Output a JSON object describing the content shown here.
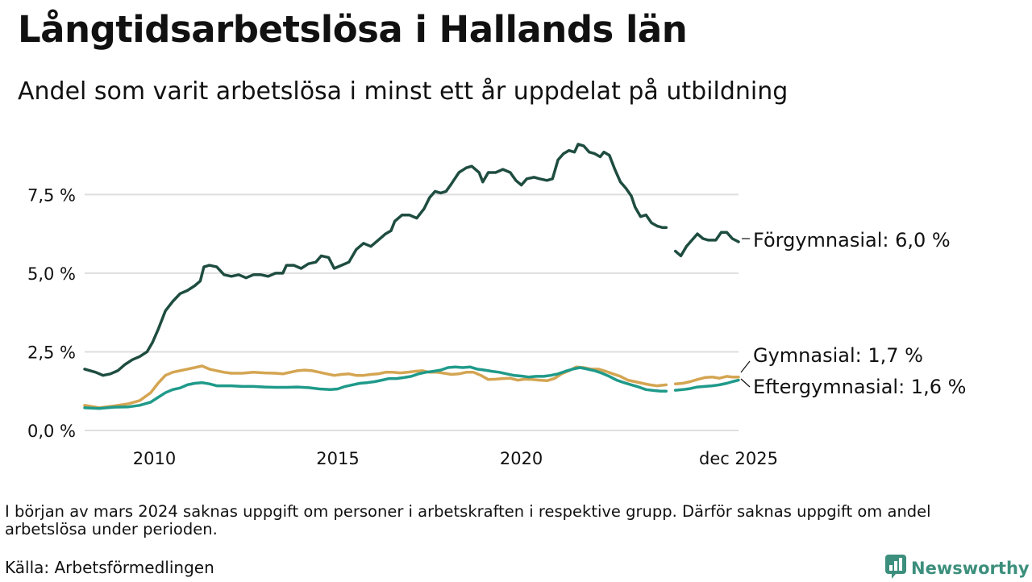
{
  "header": {
    "title": "Långtidsarbetslösa i Hallands län",
    "subtitle": "Andel som varit arbetslösa i minst ett år uppdelat på utbildning"
  },
  "footer": {
    "note": "I början av mars 2024 saknas uppgift om personer i arbetskraften i respektive grupp. Därför saknas uppgift om andel arbetslösa under perioden.",
    "source": "Källa: Arbetsförmedlingen",
    "brand": "Newsworthy",
    "brand_icon": "newsworthy-logo-icon",
    "brand_color": "#3c8f7c"
  },
  "chart_data": {
    "type": "line",
    "title": "Långtidsarbetslösa i Hallands län",
    "subtitle": "Andel som varit arbetslösa i minst ett år uppdelat på utbildning",
    "xlabel": "",
    "ylabel": "",
    "x_range": [
      2008.1,
      2025.92
    ],
    "ylim": [
      0,
      9.2
    ],
    "grid": true,
    "yticks": [
      {
        "value": 0,
        "label": "0,0 %"
      },
      {
        "value": 2.5,
        "label": "2,5 %"
      },
      {
        "value": 5,
        "label": "5,0 %"
      },
      {
        "value": 7.5,
        "label": "7,5 %"
      }
    ],
    "xticks": [
      {
        "value": 2010,
        "label": "2010"
      },
      {
        "value": 2015,
        "label": "2015"
      },
      {
        "value": 2020,
        "label": "2020"
      },
      {
        "value": 2025.92,
        "label": "dec 2025"
      }
    ],
    "gap": [
      2023.95,
      2024.2
    ],
    "series": [
      {
        "name": "Förgymnasial",
        "label": "Förgymnasial: 6,0 %",
        "color": "#1e4d40",
        "points": [
          [
            2008.1,
            1.95
          ],
          [
            2008.4,
            1.85
          ],
          [
            2008.6,
            1.75
          ],
          [
            2008.8,
            1.8
          ],
          [
            2009.0,
            1.9
          ],
          [
            2009.2,
            2.1
          ],
          [
            2009.4,
            2.25
          ],
          [
            2009.6,
            2.35
          ],
          [
            2009.8,
            2.5
          ],
          [
            2009.95,
            2.8
          ],
          [
            2010.1,
            3.2
          ],
          [
            2010.3,
            3.8
          ],
          [
            2010.5,
            4.1
          ],
          [
            2010.7,
            4.35
          ],
          [
            2010.9,
            4.45
          ],
          [
            2011.1,
            4.6
          ],
          [
            2011.25,
            4.75
          ],
          [
            2011.35,
            5.2
          ],
          [
            2011.5,
            5.25
          ],
          [
            2011.7,
            5.2
          ],
          [
            2011.9,
            4.95
          ],
          [
            2012.1,
            4.9
          ],
          [
            2012.3,
            4.95
          ],
          [
            2012.5,
            4.85
          ],
          [
            2012.7,
            4.95
          ],
          [
            2012.9,
            4.95
          ],
          [
            2013.1,
            4.9
          ],
          [
            2013.3,
            5.0
          ],
          [
            2013.5,
            5.0
          ],
          [
            2013.6,
            5.25
          ],
          [
            2013.8,
            5.25
          ],
          [
            2014.0,
            5.15
          ],
          [
            2014.2,
            5.3
          ],
          [
            2014.4,
            5.35
          ],
          [
            2014.55,
            5.55
          ],
          [
            2014.75,
            5.5
          ],
          [
            2014.9,
            5.15
          ],
          [
            2015.1,
            5.25
          ],
          [
            2015.3,
            5.35
          ],
          [
            2015.5,
            5.75
          ],
          [
            2015.7,
            5.95
          ],
          [
            2015.9,
            5.85
          ],
          [
            2016.1,
            6.05
          ],
          [
            2016.3,
            6.25
          ],
          [
            2016.45,
            6.35
          ],
          [
            2016.55,
            6.65
          ],
          [
            2016.75,
            6.85
          ],
          [
            2016.95,
            6.85
          ],
          [
            2017.15,
            6.75
          ],
          [
            2017.35,
            7.05
          ],
          [
            2017.5,
            7.4
          ],
          [
            2017.65,
            7.6
          ],
          [
            2017.8,
            7.55
          ],
          [
            2017.95,
            7.6
          ],
          [
            2018.1,
            7.85
          ],
          [
            2018.3,
            8.2
          ],
          [
            2018.5,
            8.35
          ],
          [
            2018.65,
            8.4
          ],
          [
            2018.85,
            8.2
          ],
          [
            2018.95,
            7.9
          ],
          [
            2019.1,
            8.2
          ],
          [
            2019.3,
            8.2
          ],
          [
            2019.5,
            8.3
          ],
          [
            2019.7,
            8.2
          ],
          [
            2019.85,
            7.95
          ],
          [
            2020.0,
            7.8
          ],
          [
            2020.15,
            8.0
          ],
          [
            2020.35,
            8.05
          ],
          [
            2020.5,
            8.0
          ],
          [
            2020.7,
            7.95
          ],
          [
            2020.85,
            8.0
          ],
          [
            2021.0,
            8.6
          ],
          [
            2021.15,
            8.8
          ],
          [
            2021.3,
            8.9
          ],
          [
            2021.45,
            8.85
          ],
          [
            2021.55,
            9.1
          ],
          [
            2021.7,
            9.05
          ],
          [
            2021.85,
            8.85
          ],
          [
            2022.0,
            8.8
          ],
          [
            2022.15,
            8.7
          ],
          [
            2022.25,
            8.85
          ],
          [
            2022.4,
            8.75
          ],
          [
            2022.55,
            8.3
          ],
          [
            2022.7,
            7.9
          ],
          [
            2022.85,
            7.7
          ],
          [
            2023.0,
            7.45
          ],
          [
            2023.1,
            7.1
          ],
          [
            2023.25,
            6.8
          ],
          [
            2023.4,
            6.85
          ],
          [
            2023.55,
            6.6
          ],
          [
            2023.7,
            6.5
          ],
          [
            2023.85,
            6.45
          ],
          [
            2023.95,
            6.45
          ],
          null,
          [
            2024.2,
            5.7
          ],
          [
            2024.35,
            5.55
          ],
          [
            2024.5,
            5.85
          ],
          [
            2024.65,
            6.05
          ],
          [
            2024.8,
            6.25
          ],
          [
            2024.95,
            6.1
          ],
          [
            2025.1,
            6.05
          ],
          [
            2025.3,
            6.05
          ],
          [
            2025.45,
            6.3
          ],
          [
            2025.6,
            6.3
          ],
          [
            2025.75,
            6.1
          ],
          [
            2025.92,
            6.0
          ]
        ]
      },
      {
        "name": "Gymnasial",
        "label": "Gymnasial: 1,7 %",
        "color": "#d4a552",
        "points": [
          [
            2008.1,
            0.8
          ],
          [
            2008.5,
            0.72
          ],
          [
            2008.9,
            0.78
          ],
          [
            2009.3,
            0.85
          ],
          [
            2009.6,
            0.95
          ],
          [
            2009.9,
            1.2
          ],
          [
            2010.1,
            1.5
          ],
          [
            2010.3,
            1.75
          ],
          [
            2010.5,
            1.85
          ],
          [
            2010.7,
            1.9
          ],
          [
            2010.9,
            1.95
          ],
          [
            2011.1,
            2.0
          ],
          [
            2011.3,
            2.05
          ],
          [
            2011.5,
            1.95
          ],
          [
            2011.7,
            1.9
          ],
          [
            2011.9,
            1.85
          ],
          [
            2012.1,
            1.82
          ],
          [
            2012.4,
            1.82
          ],
          [
            2012.7,
            1.85
          ],
          [
            2013.0,
            1.83
          ],
          [
            2013.3,
            1.82
          ],
          [
            2013.5,
            1.8
          ],
          [
            2013.7,
            1.85
          ],
          [
            2013.9,
            1.9
          ],
          [
            2014.1,
            1.92
          ],
          [
            2014.3,
            1.9
          ],
          [
            2014.5,
            1.85
          ],
          [
            2014.7,
            1.8
          ],
          [
            2014.9,
            1.75
          ],
          [
            2015.1,
            1.78
          ],
          [
            2015.3,
            1.8
          ],
          [
            2015.5,
            1.75
          ],
          [
            2015.7,
            1.75
          ],
          [
            2015.9,
            1.78
          ],
          [
            2016.1,
            1.8
          ],
          [
            2016.3,
            1.85
          ],
          [
            2016.5,
            1.85
          ],
          [
            2016.7,
            1.83
          ],
          [
            2016.9,
            1.85
          ],
          [
            2017.1,
            1.88
          ],
          [
            2017.3,
            1.9
          ],
          [
            2017.5,
            1.85
          ],
          [
            2017.7,
            1.85
          ],
          [
            2017.9,
            1.82
          ],
          [
            2018.1,
            1.78
          ],
          [
            2018.3,
            1.8
          ],
          [
            2018.5,
            1.85
          ],
          [
            2018.7,
            1.85
          ],
          [
            2018.9,
            1.75
          ],
          [
            2019.1,
            1.62
          ],
          [
            2019.3,
            1.63
          ],
          [
            2019.5,
            1.65
          ],
          [
            2019.7,
            1.66
          ],
          [
            2019.9,
            1.6
          ],
          [
            2020.1,
            1.63
          ],
          [
            2020.3,
            1.62
          ],
          [
            2020.5,
            1.6
          ],
          [
            2020.7,
            1.58
          ],
          [
            2020.9,
            1.65
          ],
          [
            2021.1,
            1.8
          ],
          [
            2021.3,
            1.9
          ],
          [
            2021.5,
            2.02
          ],
          [
            2021.7,
            2.0
          ],
          [
            2021.9,
            1.95
          ],
          [
            2022.1,
            1.95
          ],
          [
            2022.3,
            1.88
          ],
          [
            2022.5,
            1.8
          ],
          [
            2022.7,
            1.72
          ],
          [
            2022.9,
            1.6
          ],
          [
            2023.1,
            1.55
          ],
          [
            2023.3,
            1.5
          ],
          [
            2023.5,
            1.45
          ],
          [
            2023.7,
            1.42
          ],
          [
            2023.95,
            1.45
          ],
          null,
          [
            2024.2,
            1.48
          ],
          [
            2024.4,
            1.5
          ],
          [
            2024.6,
            1.55
          ],
          [
            2024.8,
            1.62
          ],
          [
            2025.0,
            1.68
          ],
          [
            2025.2,
            1.7
          ],
          [
            2025.4,
            1.66
          ],
          [
            2025.6,
            1.72
          ],
          [
            2025.75,
            1.7
          ],
          [
            2025.92,
            1.7
          ]
        ]
      },
      {
        "name": "Eftergymnasial",
        "label": "Eftergymnasial: 1,6 %",
        "color": "#1f9a8a",
        "points": [
          [
            2008.1,
            0.72
          ],
          [
            2008.5,
            0.7
          ],
          [
            2008.9,
            0.74
          ],
          [
            2009.3,
            0.75
          ],
          [
            2009.6,
            0.8
          ],
          [
            2009.9,
            0.9
          ],
          [
            2010.1,
            1.05
          ],
          [
            2010.3,
            1.2
          ],
          [
            2010.5,
            1.3
          ],
          [
            2010.7,
            1.35
          ],
          [
            2010.9,
            1.45
          ],
          [
            2011.1,
            1.5
          ],
          [
            2011.3,
            1.52
          ],
          [
            2011.5,
            1.48
          ],
          [
            2011.7,
            1.42
          ],
          [
            2011.9,
            1.42
          ],
          [
            2012.1,
            1.42
          ],
          [
            2012.4,
            1.4
          ],
          [
            2012.7,
            1.4
          ],
          [
            2013.0,
            1.38
          ],
          [
            2013.3,
            1.37
          ],
          [
            2013.6,
            1.37
          ],
          [
            2013.9,
            1.38
          ],
          [
            2014.2,
            1.36
          ],
          [
            2014.5,
            1.32
          ],
          [
            2014.8,
            1.3
          ],
          [
            2015.0,
            1.32
          ],
          [
            2015.2,
            1.4
          ],
          [
            2015.4,
            1.45
          ],
          [
            2015.6,
            1.5
          ],
          [
            2015.8,
            1.52
          ],
          [
            2016.0,
            1.55
          ],
          [
            2016.2,
            1.6
          ],
          [
            2016.4,
            1.65
          ],
          [
            2016.6,
            1.65
          ],
          [
            2016.8,
            1.68
          ],
          [
            2017.0,
            1.72
          ],
          [
            2017.2,
            1.8
          ],
          [
            2017.4,
            1.85
          ],
          [
            2017.6,
            1.88
          ],
          [
            2017.8,
            1.92
          ],
          [
            2018.0,
            2.0
          ],
          [
            2018.2,
            2.02
          ],
          [
            2018.4,
            2.0
          ],
          [
            2018.6,
            2.02
          ],
          [
            2018.8,
            1.95
          ],
          [
            2019.0,
            1.92
          ],
          [
            2019.2,
            1.88
          ],
          [
            2019.4,
            1.85
          ],
          [
            2019.6,
            1.8
          ],
          [
            2019.8,
            1.75
          ],
          [
            2020.0,
            1.73
          ],
          [
            2020.2,
            1.7
          ],
          [
            2020.4,
            1.72
          ],
          [
            2020.6,
            1.72
          ],
          [
            2020.8,
            1.75
          ],
          [
            2021.0,
            1.8
          ],
          [
            2021.2,
            1.88
          ],
          [
            2021.4,
            1.95
          ],
          [
            2021.6,
            2.0
          ],
          [
            2021.8,
            1.95
          ],
          [
            2022.0,
            1.9
          ],
          [
            2022.2,
            1.82
          ],
          [
            2022.4,
            1.72
          ],
          [
            2022.6,
            1.6
          ],
          [
            2022.8,
            1.52
          ],
          [
            2023.0,
            1.45
          ],
          [
            2023.2,
            1.38
          ],
          [
            2023.4,
            1.3
          ],
          [
            2023.6,
            1.27
          ],
          [
            2023.8,
            1.25
          ],
          [
            2023.95,
            1.25
          ],
          null,
          [
            2024.2,
            1.28
          ],
          [
            2024.4,
            1.3
          ],
          [
            2024.6,
            1.33
          ],
          [
            2024.8,
            1.38
          ],
          [
            2025.0,
            1.4
          ],
          [
            2025.2,
            1.42
          ],
          [
            2025.4,
            1.45
          ],
          [
            2025.6,
            1.5
          ],
          [
            2025.75,
            1.55
          ],
          [
            2025.92,
            1.6
          ]
        ]
      }
    ]
  }
}
